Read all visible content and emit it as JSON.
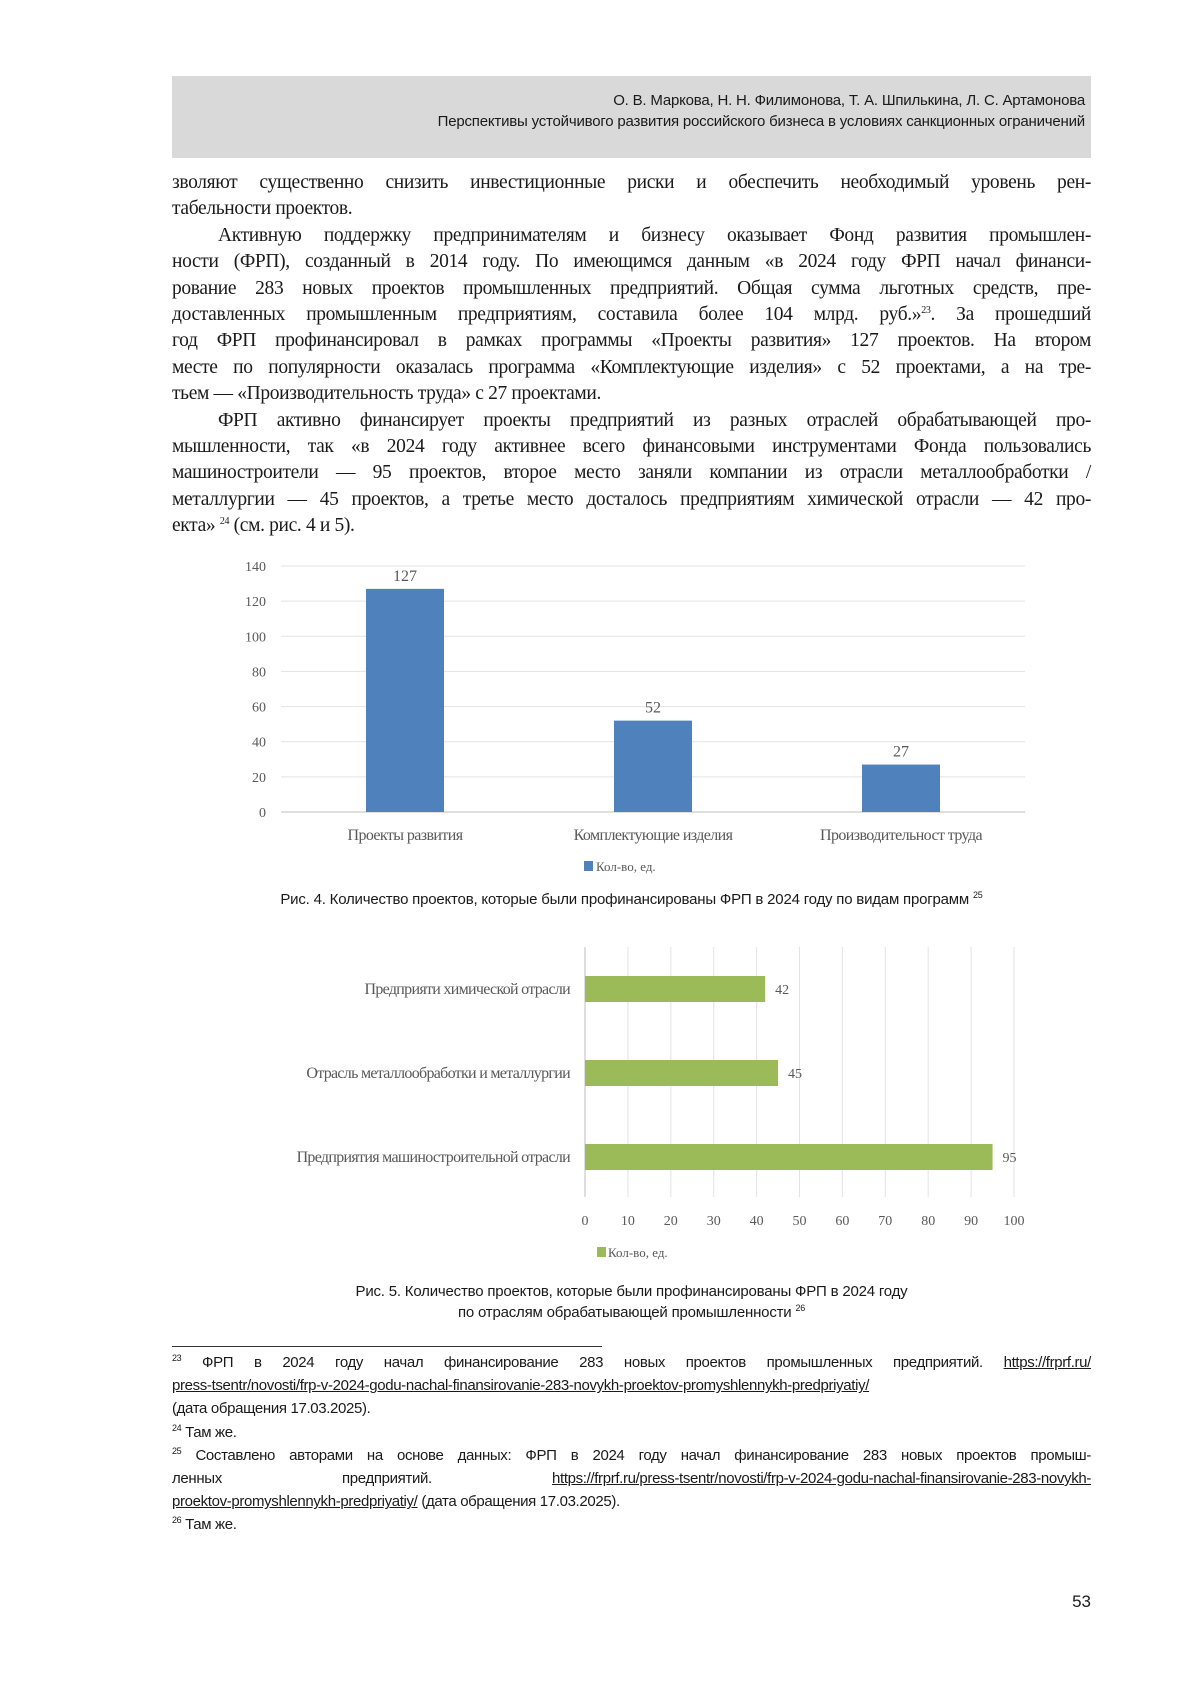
{
  "header": {
    "authors": "О. В. Маркова, Н. Н. Филимонова, Т. А. Шпилькина, Л. С. Артамонова",
    "title": "Перспективы устойчивого развития российского бизнеса в условиях санкционных ограничений"
  },
  "body_lines": [
    {
      "parts": [
        {
          "t": "зволяют существенно снизить инвестиционные риски и обеспечить необходимый уровень рен-"
        }
      ]
    },
    {
      "parts": [
        {
          "t": "табельности проектов."
        }
      ],
      "last": true
    },
    {
      "indent": true,
      "parts": [
        {
          "t": "Активную поддержку предпринимателям и бизнесу оказывает Фонд развития промышлен-"
        }
      ]
    },
    {
      "parts": [
        {
          "t": "ности (ФРП), созданный в 2014 году. По имеющимся данным «в 2024 году ФРП начал финанси-"
        }
      ]
    },
    {
      "parts": [
        {
          "t": "рование 283 новых проектов промышленных предприятий. Общая сумма льготных средств, пре-"
        }
      ]
    },
    {
      "parts": [
        {
          "t": "доставленных промышленным предприятиям, составила более 104 млрд. руб.»"
        },
        {
          "t": "23",
          "sup": true
        },
        {
          "t": ". За прошедший"
        }
      ]
    },
    {
      "parts": [
        {
          "t": "год ФРП профинансировал в рамках программы «Проекты развития» 127 проектов. На втором"
        }
      ]
    },
    {
      "parts": [
        {
          "t": "месте по популярности оказалась программа «Комплектующие изделия» с 52 проектами, а на тре-"
        }
      ]
    },
    {
      "parts": [
        {
          "t": "тьем — «Производительность труда» с 27 проектами."
        }
      ],
      "last": true
    },
    {
      "indent": true,
      "parts": [
        {
          "t": "ФРП активно финансирует проекты предприятий из разных отраслей обрабатывающей про-"
        }
      ]
    },
    {
      "parts": [
        {
          "t": "мышленности, так «в 2024 году активнее всего финансовыми инструментами Фонда пользовались"
        }
      ]
    },
    {
      "parts": [
        {
          "t": "машиностроители — 95 проектов, второе место заняли компании из отрасли металлообработки /"
        }
      ]
    },
    {
      "parts": [
        {
          "t": "металлургии — 45 проектов, а третье место досталось предприятиям химической отрасли — 42 про-"
        }
      ]
    },
    {
      "parts": [
        {
          "t": "екта» "
        },
        {
          "t": "24",
          "sup": true
        },
        {
          "t": " (см. рис. 4 и 5)."
        }
      ],
      "last": true
    }
  ],
  "chart_data": [
    {
      "type": "bar",
      "orientation": "vertical",
      "categories": [
        "Проекты развития",
        "Комплектующие изделия",
        "Производительност труда"
      ],
      "series": [
        {
          "name": "Кол-во, ед.",
          "values": [
            127,
            52,
            27
          ],
          "color": "#4f81bd"
        }
      ],
      "data_labels": [
        "127",
        "52",
        "27"
      ],
      "ylim": [
        0,
        140
      ],
      "yticks": [
        "0",
        "20",
        "40",
        "60",
        "80",
        "100",
        "120",
        "140"
      ],
      "grid": true,
      "legend": "bottom",
      "caption": "Рис. 4. Количество проектов, которые были профинансированы ФРП в 2024 году по видам программ",
      "caption_ref": "25"
    },
    {
      "type": "bar",
      "orientation": "horizontal",
      "categories": [
        "Предприяти химической отрасли",
        "Отрасль металлообработки и металлургии",
        "Предприятия машиностроительной отрасли"
      ],
      "series": [
        {
          "name": "Кол-во, ед.",
          "values": [
            42,
            45,
            95
          ],
          "color": "#9bbb59"
        }
      ],
      "data_labels": [
        "42",
        "45",
        "95"
      ],
      "xlim": [
        0,
        100
      ],
      "xticks": [
        "0",
        "10",
        "20",
        "30",
        "40",
        "50",
        "60",
        "70",
        "80",
        "90",
        "100"
      ],
      "grid": true,
      "legend": "bottom",
      "caption_line1": "Рис. 5. Количество проектов, которые были профинансированы ФРП в 2024 году",
      "caption_line2": "по отраслям обрабатывающей промышленности",
      "caption_ref": "26"
    }
  ],
  "footnote_lines": [
    {
      "parts": [
        {
          "t": "23",
          "sup": true
        },
        {
          "t": " ФРП в 2024 году начал финансирование 283 новых проектов промышленных предприятий. "
        },
        {
          "t": "https://frprf.ru/",
          "link": true
        }
      ]
    },
    {
      "parts": [
        {
          "t": "press-tsentr/novosti/frp-v-2024-godu-nachal-finansirovanie-283-novykh-proektov-promyshlennykh-predpriyatiy/",
          "link": true
        }
      ]
    },
    {
      "parts": [
        {
          "t": "(дата обращения 17.03.2025)."
        }
      ],
      "last": true
    },
    {
      "parts": [
        {
          "t": "24",
          "sup": true
        },
        {
          "t": " Там же."
        }
      ],
      "last": true
    },
    {
      "parts": [
        {
          "t": "25",
          "sup": true
        },
        {
          "t": " Составлено авторами на основе данных: ФРП в 2024 году начал финансирование 283 новых проектов промыш-"
        }
      ]
    },
    {
      "parts": [
        {
          "t": "ленных предприятий. "
        },
        {
          "t": "https://frprf.ru/press-tsentr/novosti/frp-v-2024-godu-nachal-finansirovanie-283-novykh-",
          "link": true
        }
      ]
    },
    {
      "parts": [
        {
          "t": "proektov-promyshlennykh-predpriyatiy/",
          "link": true
        },
        {
          "t": " (дата обращения 17.03.2025)."
        }
      ],
      "last": true
    },
    {
      "parts": [
        {
          "t": "26",
          "sup": true
        },
        {
          "t": " Там же."
        }
      ],
      "last": true
    }
  ],
  "page_number": "53"
}
